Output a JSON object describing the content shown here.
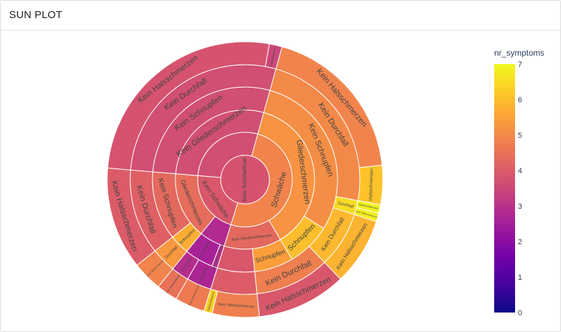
{
  "header": {
    "title": "SUN PLOT"
  },
  "chart_data": {
    "type": "sunburst",
    "title": "",
    "color_field": "nr_symptoms",
    "colorbar": {
      "title": "nr_symptoms",
      "min": 0,
      "max": 7,
      "ticks": [
        0,
        1,
        2,
        3,
        4,
        5,
        6,
        7
      ]
    },
    "hierarchy_levels": [
      "Schüttelfrost",
      "Schwäche",
      "Gliederschmerzen",
      "Schnupfen",
      "Durchfall",
      "Halsschmerzen"
    ],
    "segments": [
      {
        "id": "r0",
        "level": 0,
        "label": "Kein Schüttelfrost",
        "start": 0,
        "end": 1,
        "value": 3.8
      },
      {
        "id": "a1",
        "level": 1,
        "label": "Schwäche",
        "start": 0,
        "end": 0.505,
        "value": 4.9
      },
      {
        "id": "b1",
        "level": 1,
        "label": "Kein Schwäche",
        "start": 0.505,
        "end": 0.72,
        "value": 3.9
      },
      {
        "id": "c1",
        "level": 1,
        "label": "",
        "start": 0.72,
        "end": 1,
        "value": 3.7
      },
      {
        "id": "a2",
        "level": 2,
        "label": "Gliederschmerzen",
        "start": 0,
        "end": 0.372,
        "value": 5.2
      },
      {
        "id": "a2b",
        "level": 2,
        "label": "Kein Gliederschmerzen",
        "start": 0.372,
        "end": 0.505,
        "value": 4.3
      },
      {
        "id": "b2a",
        "level": 2,
        "label": "",
        "start": 0.505,
        "end": 0.565,
        "value": 2.8
      },
      {
        "id": "b2b",
        "level": 2,
        "label": "Gliederschmerzen",
        "start": 0.565,
        "end": 0.72,
        "value": 4.4
      },
      {
        "id": "c2a",
        "level": 2,
        "label": "Kein Gliederschmerzen",
        "start": 0.72,
        "end": 1,
        "value": 3.7
      },
      {
        "id": "a3",
        "level": 3,
        "label": "Kein Schnupfen",
        "start": 0,
        "end": 0.295,
        "value": 5.1
      },
      {
        "id": "a3b",
        "level": 3,
        "label": "Schnupfen",
        "start": 0.295,
        "end": 0.372,
        "value": 6.0
      },
      {
        "id": "a3c",
        "level": 3,
        "label": "Schnupfen",
        "start": 0.372,
        "end": 0.44,
        "value": 5.4
      },
      {
        "id": "a3d",
        "level": 3,
        "label": "",
        "start": 0.44,
        "end": 0.505,
        "value": 3.9
      },
      {
        "id": "b3a",
        "level": 3,
        "label": "Schnupfen Kein Durchfall",
        "start": 0.505,
        "end": 0.515,
        "value": 3.0
      },
      {
        "id": "b3b",
        "level": 3,
        "label": "Kein Schnupfen",
        "start": 0.515,
        "end": 0.565,
        "value": 2.6
      },
      {
        "id": "b3c",
        "level": 3,
        "label": "Schnupfen",
        "start": 0.565,
        "end": 0.6,
        "value": 5.7
      },
      {
        "id": "b3d",
        "level": 3,
        "label": "Kein Schnupfen",
        "start": 0.6,
        "end": 0.72,
        "value": 4.3
      },
      {
        "id": "c3a",
        "level": 3,
        "label": "Kein Schnupfen",
        "start": 0.72,
        "end": 1,
        "value": 3.7
      },
      {
        "id": "a4",
        "level": 4,
        "label": "Kein Durchfall",
        "start": 0,
        "end": 0.236,
        "value": 5.0
      },
      {
        "id": "a4b",
        "level": 4,
        "label": "Durchfall",
        "start": 0.236,
        "end": 0.256,
        "value": 6.5
      },
      {
        "id": "a4c",
        "level": 4,
        "label": "Kein Durchfall",
        "start": 0.256,
        "end": 0.335,
        "value": 5.9
      },
      {
        "id": "a4d",
        "level": 4,
        "label": "Kein Durchfall",
        "start": 0.335,
        "end": 0.44,
        "value": 4.8
      },
      {
        "id": "a4e",
        "level": 4,
        "label": "",
        "start": 0.44,
        "end": 0.505,
        "value": 4.0
      },
      {
        "id": "b4a",
        "level": 4,
        "label": "Kein Durchfall",
        "start": 0.505,
        "end": 0.54,
        "value": 2.7
      },
      {
        "id": "b4b",
        "level": 4,
        "label": "Kein Durchfall",
        "start": 0.54,
        "end": 0.565,
        "value": 2.9
      },
      {
        "id": "b4c",
        "level": 4,
        "label": "Durchfall",
        "start": 0.565,
        "end": 0.6,
        "value": 5.3
      },
      {
        "id": "b4d",
        "level": 4,
        "label": "Kein Durchfall",
        "start": 0.6,
        "end": 0.72,
        "value": 4.1
      },
      {
        "id": "c4a",
        "level": 4,
        "label": "Kein Durchfall",
        "start": 0.72,
        "end": 1,
        "value": 3.7
      },
      {
        "id": "a5",
        "level": 5,
        "label": "Kein Halsschmerzen",
        "start": 0,
        "end": 0.19,
        "value": 4.9
      },
      {
        "id": "a5b",
        "level": 5,
        "label": "Halsschmerzen",
        "start": 0.19,
        "end": 0.236,
        "value": 6.1
      },
      {
        "id": "a5c",
        "level": 5,
        "label": "Halsschmerzen",
        "start": 0.236,
        "end": 0.246,
        "value": 6.9
      },
      {
        "id": "a5d",
        "level": 5,
        "label": "Kein Halsschmerzen",
        "start": 0.246,
        "end": 0.256,
        "value": 6.8
      },
      {
        "id": "a5e",
        "level": 5,
        "label": "Kein Halsschmerzen",
        "start": 0.256,
        "end": 0.335,
        "value": 5.8
      },
      {
        "id": "a5f",
        "level": 5,
        "label": "Kein Halsschmerzen",
        "start": 0.335,
        "end": 0.44,
        "value": 3.9
      },
      {
        "id": "a5g",
        "level": 5,
        "label": "Kein Halsschmerzen",
        "start": 0.44,
        "end": 0.495,
        "value": 4.8
      },
      {
        "id": "a5h",
        "level": 5,
        "label": "Halsschmerzen",
        "start": 0.495,
        "end": 0.505,
        "value": 6.3
      },
      {
        "id": "b5a",
        "level": 5,
        "label": "Kein Halsschmerzen",
        "start": 0.505,
        "end": 0.54,
        "value": 4.7
      },
      {
        "id": "b5b",
        "level": 5,
        "label": "Kein Halsschmerzen",
        "start": 0.54,
        "end": 0.565,
        "value": 4.5
      },
      {
        "id": "b5c",
        "level": 5,
        "label": "Kein Halsschmerzen",
        "start": 0.565,
        "end": 0.6,
        "value": 4.9
      },
      {
        "id": "b5d",
        "level": 5,
        "label": "Kein Halsschmerzen",
        "start": 0.6,
        "end": 0.72,
        "value": 4.0
      },
      {
        "id": "c5a",
        "level": 5,
        "label": "Kein Halsschmerzen",
        "start": 0.72,
        "end": 0.985,
        "value": 3.8
      },
      {
        "id": "c5b",
        "level": 5,
        "label": "Halsschmerzen",
        "start": 0.985,
        "end": 1,
        "value": 3.5
      }
    ]
  }
}
